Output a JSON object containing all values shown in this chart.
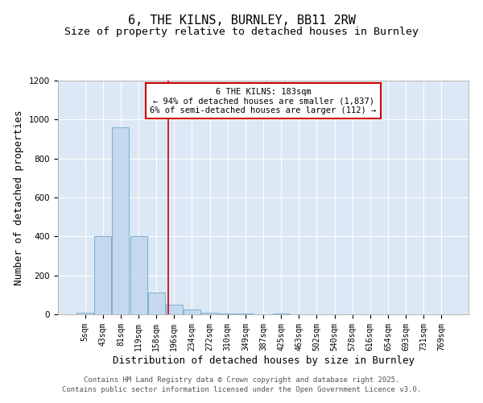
{
  "title": "6, THE KILNS, BURNLEY, BB11 2RW",
  "subtitle": "Size of property relative to detached houses in Burnley",
  "xlabel": "Distribution of detached houses by size in Burnley",
  "ylabel": "Number of detached properties",
  "bin_labels": [
    "5sqm",
    "43sqm",
    "81sqm",
    "119sqm",
    "158sqm",
    "196sqm",
    "234sqm",
    "272sqm",
    "310sqm",
    "349sqm",
    "387sqm",
    "425sqm",
    "463sqm",
    "502sqm",
    "540sqm",
    "578sqm",
    "616sqm",
    "654sqm",
    "693sqm",
    "731sqm",
    "769sqm"
  ],
  "bar_values": [
    10,
    400,
    960,
    400,
    110,
    50,
    25,
    10,
    5,
    5,
    0,
    5,
    0,
    0,
    0,
    0,
    0,
    0,
    0,
    0,
    0
  ],
  "bar_color": "#c5d9ee",
  "bar_edge_color": "#7aafd4",
  "vline_color": "#cc0000",
  "annotation_text": "6 THE KILNS: 183sqm\n← 94% of detached houses are smaller (1,837)\n6% of semi-detached houses are larger (112) →",
  "annotation_box_color": "#ffffff",
  "annotation_box_edge": "#cc0000",
  "ylim": [
    0,
    1200
  ],
  "yticks": [
    0,
    200,
    400,
    600,
    800,
    1000,
    1200
  ],
  "background_color": "#dce8f5",
  "footer_line1": "Contains HM Land Registry data © Crown copyright and database right 2025.",
  "footer_line2": "Contains public sector information licensed under the Open Government Licence v3.0.",
  "title_fontsize": 11,
  "subtitle_fontsize": 9.5,
  "xlabel_fontsize": 9,
  "ylabel_fontsize": 9,
  "tick_fontsize": 7,
  "annotation_fontsize": 7.5,
  "footer_fontsize": 6.5
}
